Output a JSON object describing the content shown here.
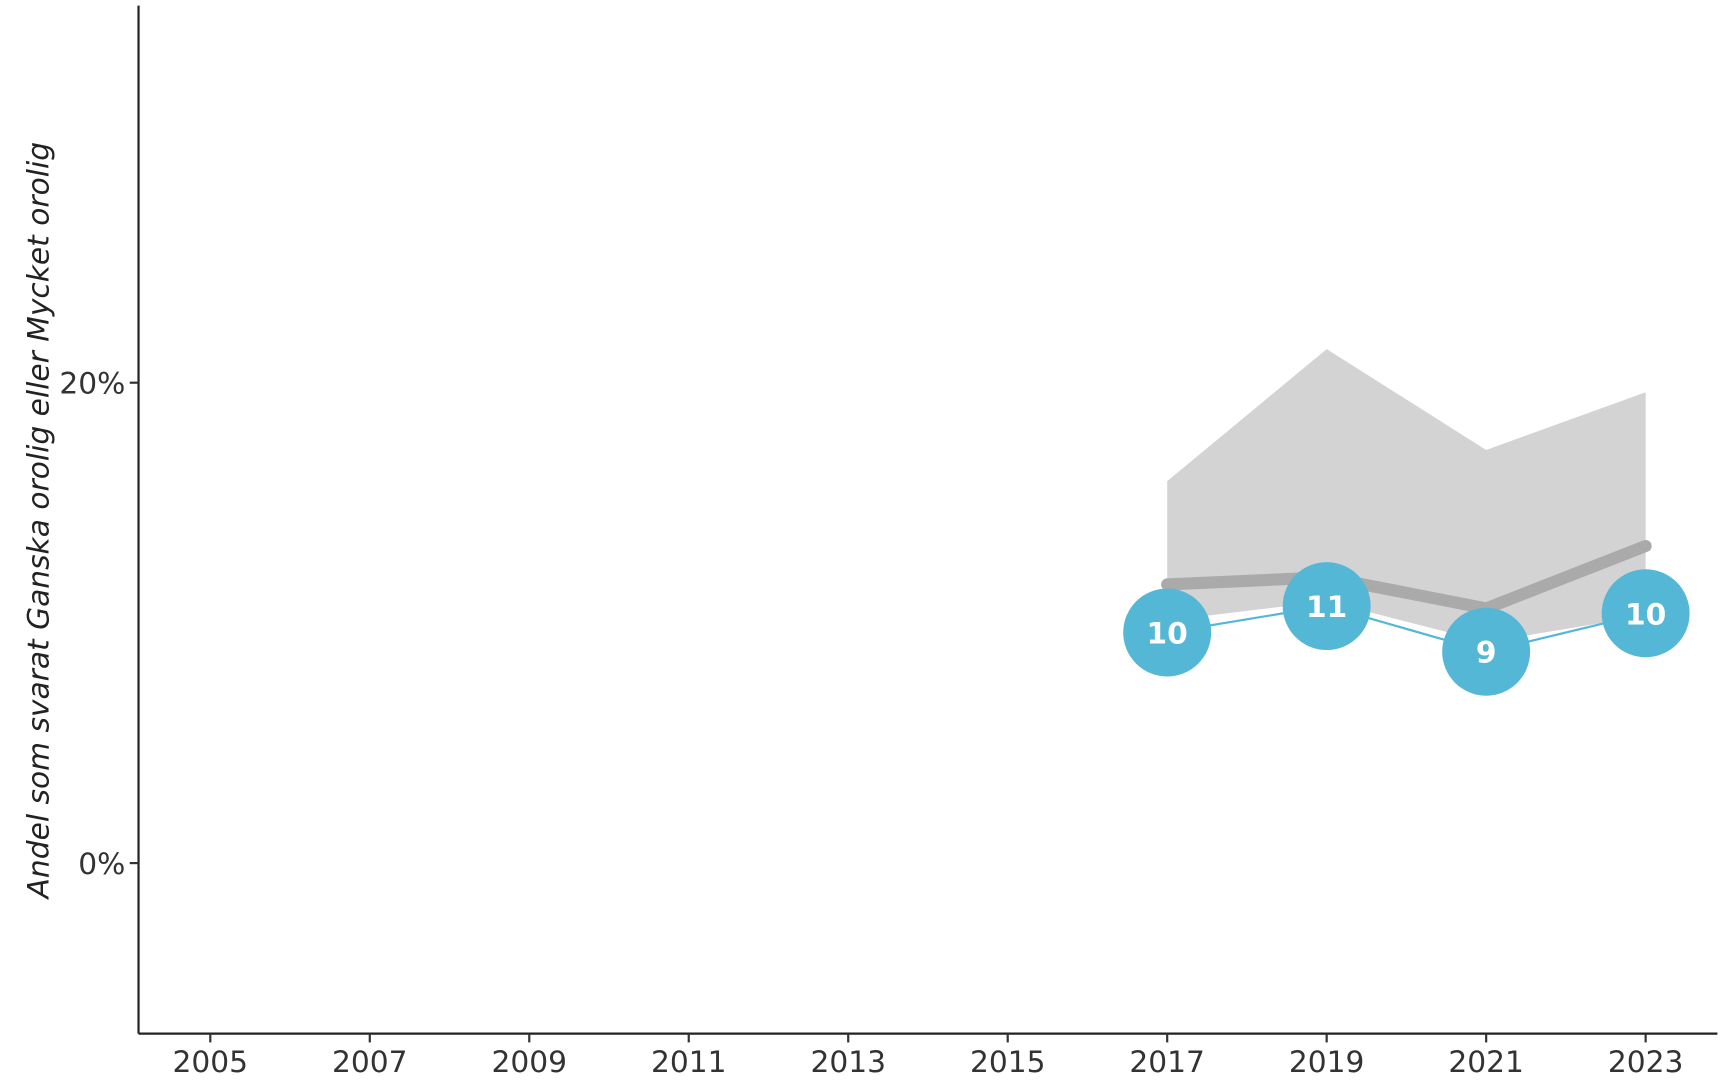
{
  "chart_data": {
    "type": "line",
    "y_label": "Andel som svarat Ganska orolig eller Mycket orolig",
    "x": [
      2017,
      2019,
      2021,
      2023
    ],
    "xlim": [
      2004.1,
      2023.9
    ],
    "xticks": [
      2005,
      2007,
      2009,
      2011,
      2013,
      2015,
      2017,
      2019,
      2021,
      2023
    ],
    "ylim": [
      -7.1,
      35.7
    ],
    "yticks": [
      {
        "value": 0,
        "label": "0%"
      },
      {
        "value": 20,
        "label": "20%"
      }
    ],
    "band": {
      "color": "#d3d3d3",
      "upper": [
        15.9,
        21.4,
        17.2,
        19.6
      ],
      "lower": [
        10.1,
        10.9,
        9.2,
        10.3
      ]
    },
    "series": [
      {
        "color": "#aaaaaa",
        "values": [
          11.6,
          11.9,
          10.6,
          13.2
        ]
      },
      {
        "color": "#55b7d6",
        "values": [
          9.6,
          10.7,
          8.8,
          10.4
        ],
        "value_labels": [
          "10",
          "11",
          "9",
          "10"
        ]
      }
    ],
    "grid": false
  }
}
